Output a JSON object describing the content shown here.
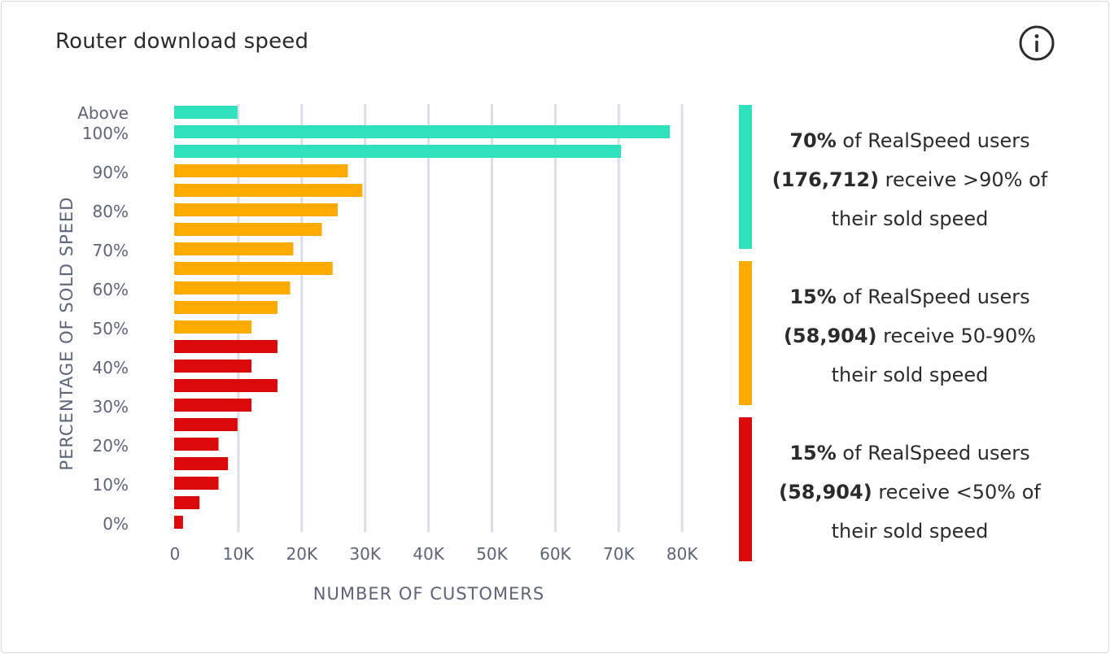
{
  "card": {
    "title": "Router download speed",
    "info_icon": "info-circle-icon"
  },
  "colors": {
    "green": "#30e1bd",
    "orange": "#ffaa00",
    "red": "#db0909",
    "grid": "#d9dee8",
    "axis_text": "#5b6478",
    "title_text": "#2b2b2b"
  },
  "chart_data": {
    "type": "bar",
    "orientation": "horizontal",
    "title": "Router download speed",
    "xlabel": "NUMBER OF CUSTOMERS",
    "ylabel": "PERCENTAGE OF SOLD SPEED",
    "xlim": [
      0,
      80000
    ],
    "xticks": [
      0,
      10000,
      20000,
      30000,
      40000,
      50000,
      60000,
      70000,
      80000
    ],
    "xtick_labels": [
      "0",
      "10K",
      "20K",
      "30K",
      "40K",
      "50K",
      "60K",
      "70K",
      "80K"
    ],
    "ytick_labels": [
      "Above",
      "100%",
      "90%",
      "80%",
      "70%",
      "60%",
      "50%",
      "40%",
      "30%",
      "20%",
      "10%",
      "0%"
    ],
    "grid": true,
    "bars": [
      {
        "value": 10000,
        "group": "green"
      },
      {
        "value": 78200,
        "group": "green"
      },
      {
        "value": 70500,
        "group": "green"
      },
      {
        "value": 27400,
        "group": "orange"
      },
      {
        "value": 29700,
        "group": "orange"
      },
      {
        "value": 25800,
        "group": "orange"
      },
      {
        "value": 23300,
        "group": "orange"
      },
      {
        "value": 18800,
        "group": "orange"
      },
      {
        "value": 25000,
        "group": "orange"
      },
      {
        "value": 18300,
        "group": "orange"
      },
      {
        "value": 16300,
        "group": "orange"
      },
      {
        "value": 12200,
        "group": "orange"
      },
      {
        "value": 16300,
        "group": "red"
      },
      {
        "value": 12200,
        "group": "red"
      },
      {
        "value": 16300,
        "group": "red"
      },
      {
        "value": 12200,
        "group": "red"
      },
      {
        "value": 10000,
        "group": "red"
      },
      {
        "value": 7000,
        "group": "red"
      },
      {
        "value": 8500,
        "group": "red"
      },
      {
        "value": 7000,
        "group": "red"
      },
      {
        "value": 4000,
        "group": "red"
      },
      {
        "value": 1400,
        "group": "red"
      }
    ]
  },
  "legend": [
    {
      "group": "green",
      "percent": "70%",
      "text1": " of RealSpeed users",
      "count": "(176,712)",
      "text2": " receive >90% of",
      "text3": "their sold speed"
    },
    {
      "group": "orange",
      "percent": "15%",
      "text1": " of RealSpeed users",
      "count": "(58,904)",
      "text2": " receive 50-90%",
      "text3": "their sold speed"
    },
    {
      "group": "red",
      "percent": "15%",
      "text1": " of RealSpeed users",
      "count": "(58,904)",
      "text2": " receive <50% of",
      "text3": "their sold speed"
    }
  ]
}
